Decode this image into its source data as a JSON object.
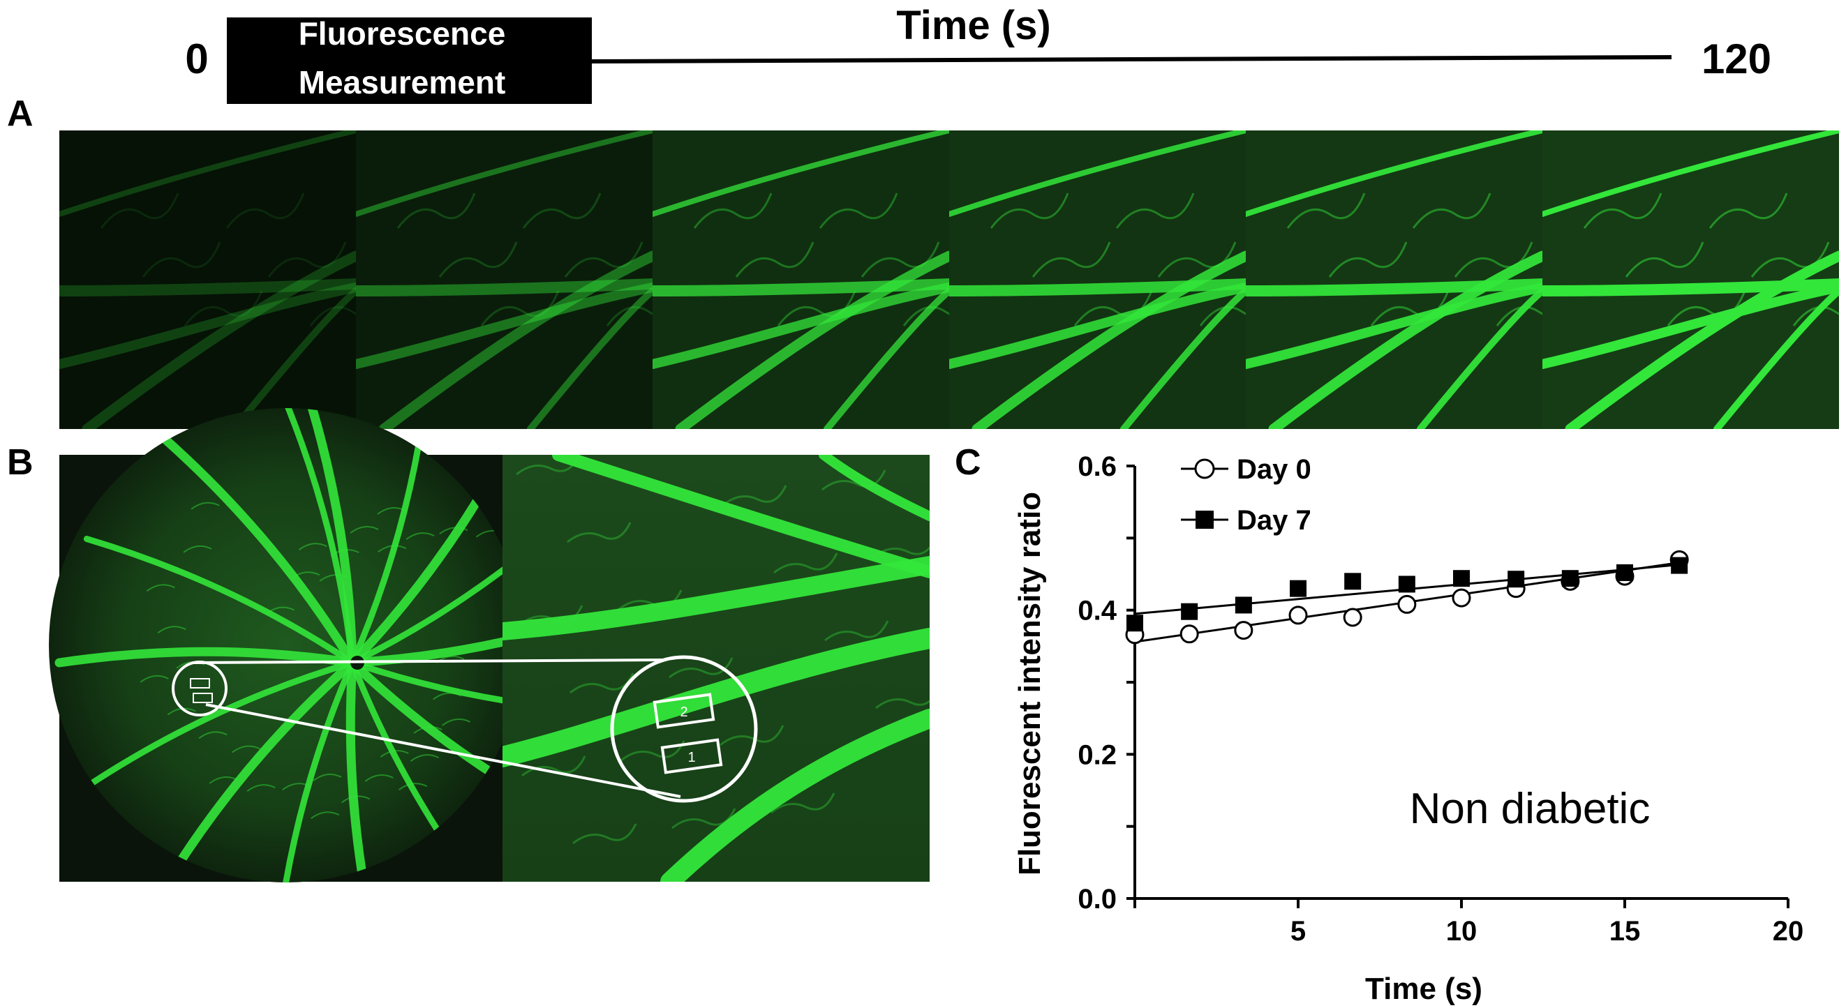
{
  "timeline": {
    "start": "0",
    "end": "120",
    "title": "Time (s)",
    "box_line1": "Fluorescence",
    "box_line2": "Measurement"
  },
  "panels": {
    "a": "A",
    "b": "B",
    "c": "C"
  },
  "roi_labels": [
    "2",
    "1"
  ],
  "colors": {
    "vessel_green": "#33e63a",
    "tissue_dark": "#0b1a0b",
    "background": "#ffffff",
    "text": "#000000"
  },
  "chart_data": {
    "type": "scatter",
    "xlabel": "Time (s)",
    "ylabel": "Fluorescent intensity ratio",
    "xlim": [
      0,
      20
    ],
    "ylim": [
      0,
      0.6
    ],
    "x_ticks": [
      "5",
      "10",
      "15",
      "20"
    ],
    "y_ticks": [
      "0.0",
      "0.2",
      "0.4",
      "0.6"
    ],
    "annotation": "Non diabetic",
    "legend_position": "top-left",
    "grid": false,
    "series": [
      {
        "name": "Day 0",
        "marker": "open-circle",
        "x": [
          0,
          1.67,
          3.33,
          5,
          6.67,
          8.33,
          10,
          11.67,
          13.33,
          15,
          16.67
        ],
        "y": [
          0.366,
          0.367,
          0.372,
          0.393,
          0.39,
          0.408,
          0.417,
          0.43,
          0.44,
          0.447,
          0.47
        ],
        "fit": [
          0.356,
          0.466
        ]
      },
      {
        "name": "Day 7",
        "marker": "filled-square",
        "x": [
          0,
          1.67,
          3.33,
          5,
          6.67,
          8.33,
          10,
          11.67,
          13.33,
          15,
          16.67
        ],
        "y": [
          0.382,
          0.398,
          0.407,
          0.43,
          0.44,
          0.436,
          0.444,
          0.443,
          0.444,
          0.452,
          0.462
        ],
        "fit": [
          0.395,
          0.463
        ]
      }
    ]
  }
}
